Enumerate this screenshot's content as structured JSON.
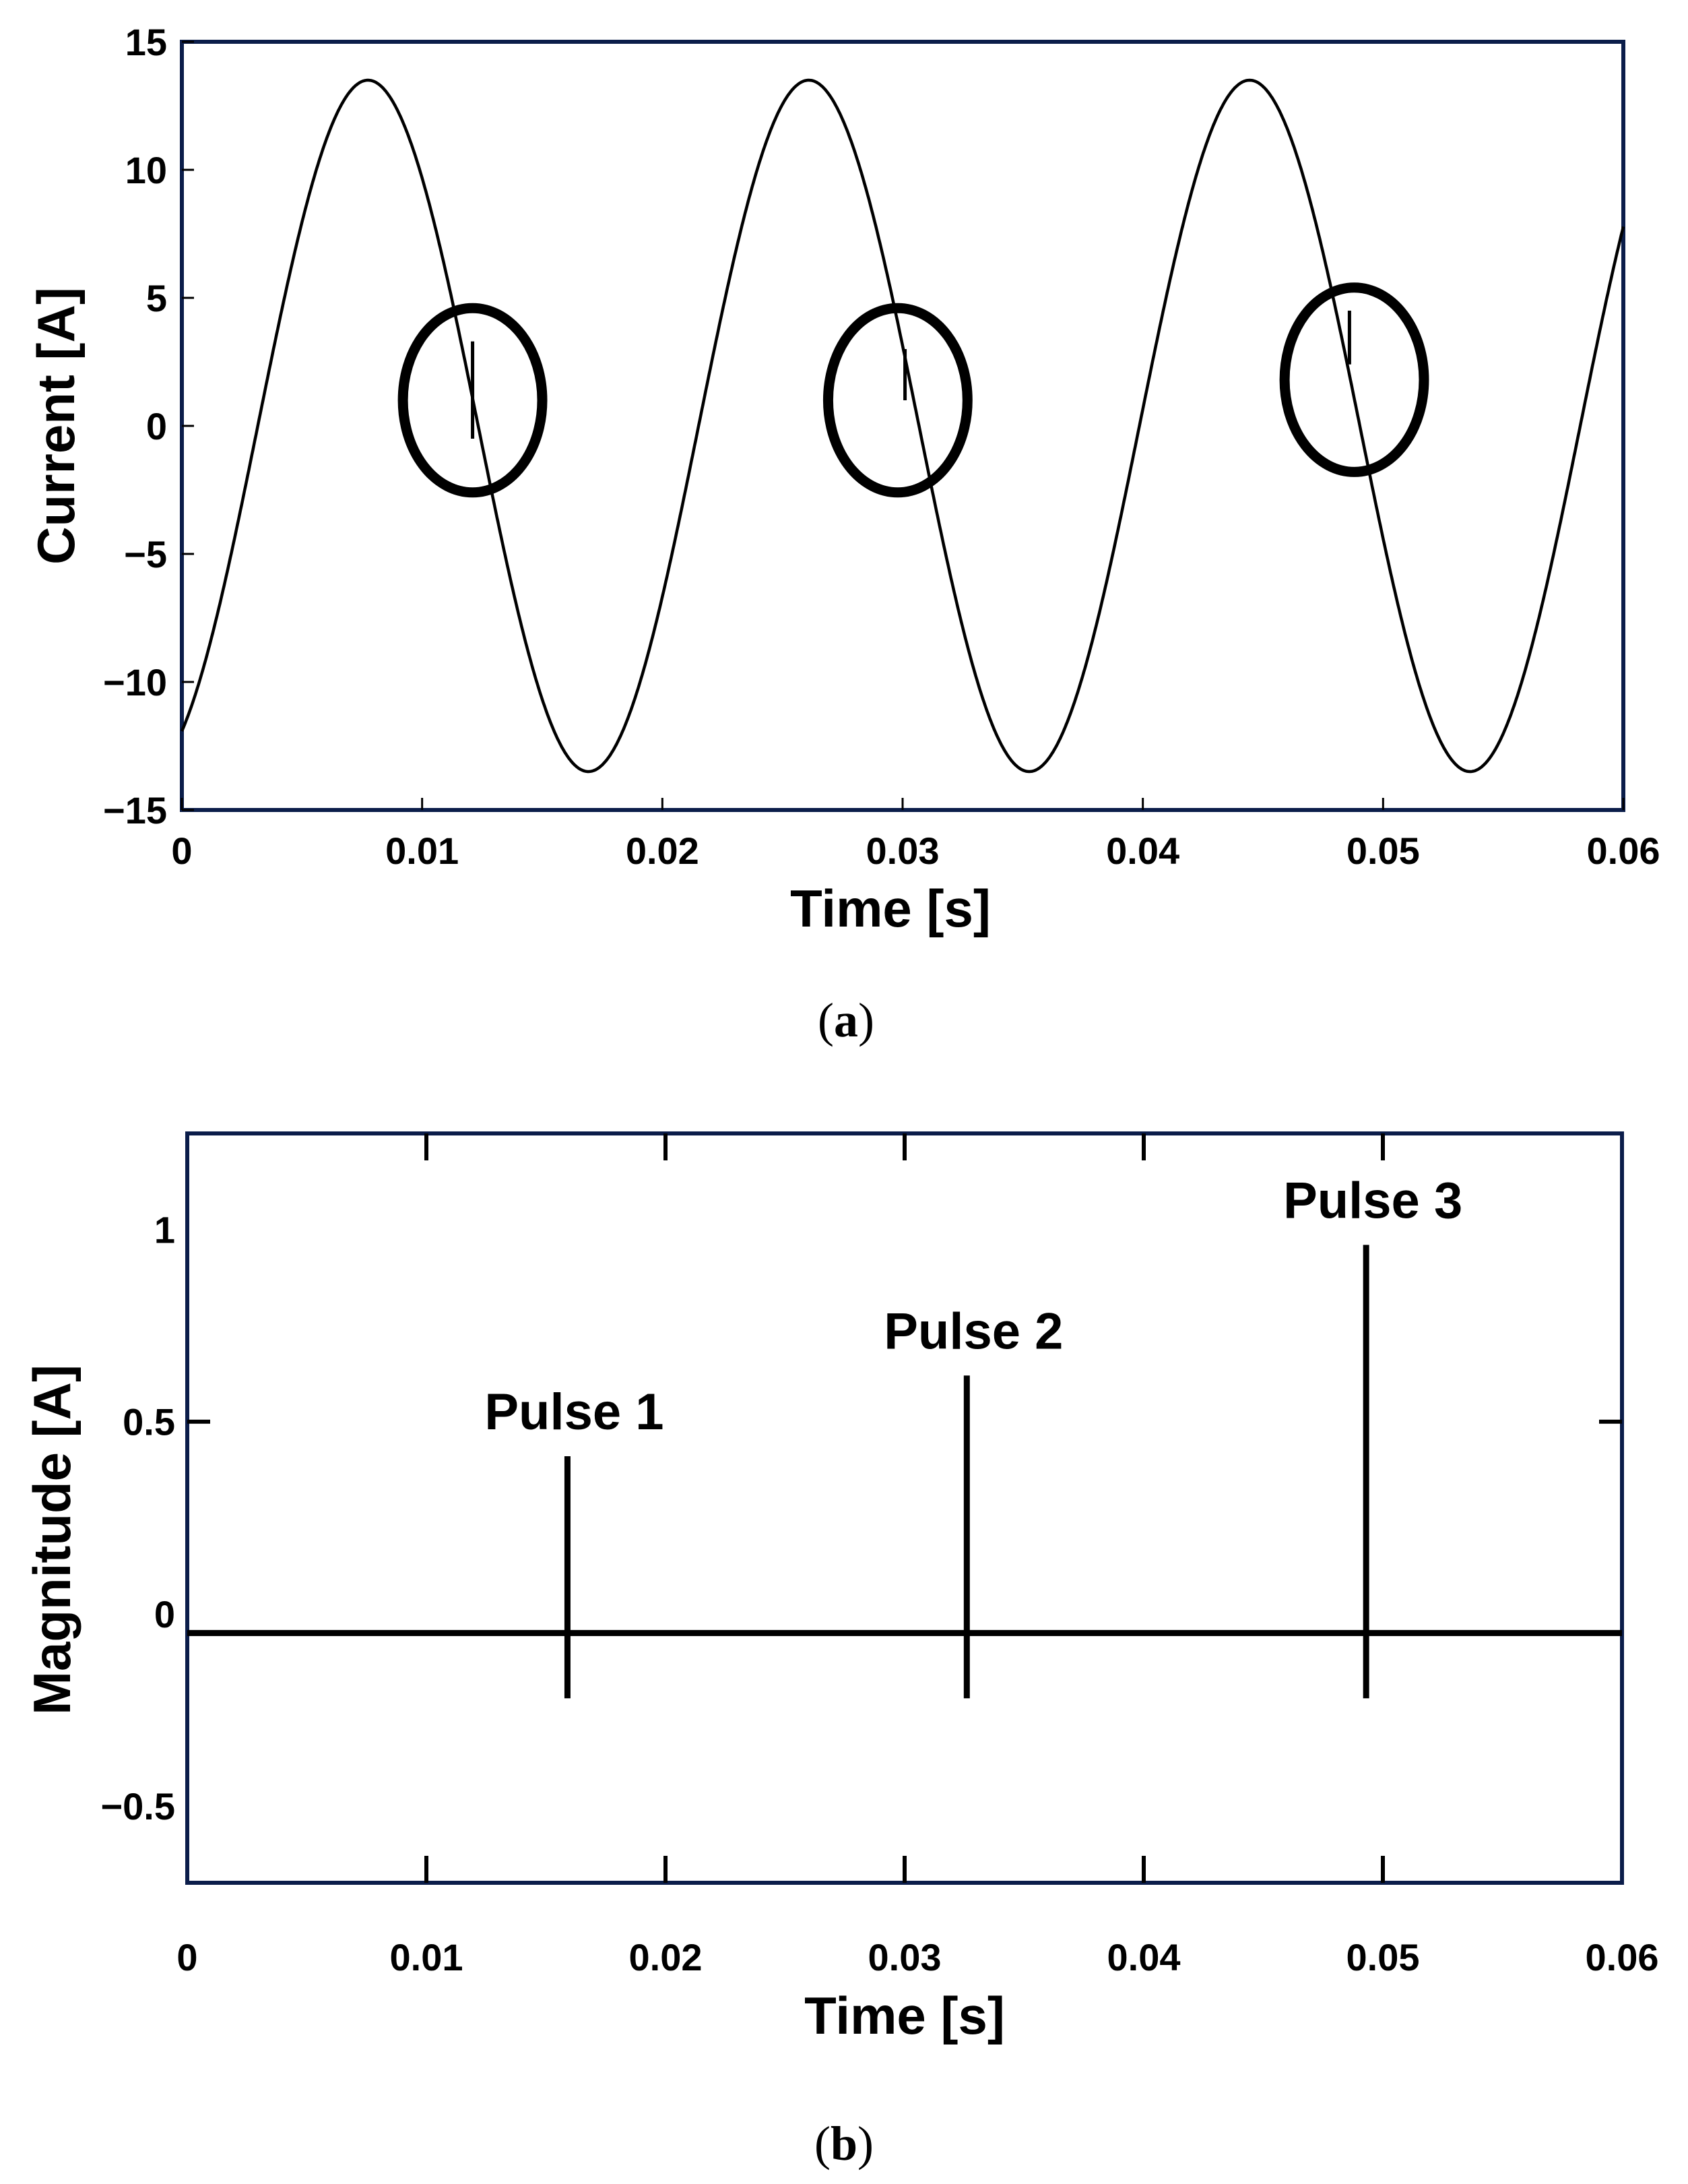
{
  "chart_data": [
    {
      "type": "line",
      "panel_label": "a",
      "title": "",
      "xlabel": "Time [s]",
      "ylabel": "Current [A]",
      "xlim": [
        0,
        0.06
      ],
      "ylim": [
        -15,
        15
      ],
      "xticks": [
        0,
        0.01,
        0.02,
        0.03,
        0.04,
        0.05,
        0.06
      ],
      "xtick_labels": [
        "0",
        "0.01",
        "0.02",
        "0.03",
        "0.04",
        "0.05",
        "0.06"
      ],
      "yticks": [
        15,
        10,
        5,
        0,
        -5,
        -10,
        -15
      ],
      "ytick_labels": [
        "15",
        "10",
        "5",
        "0",
        "−5",
        "−10",
        "−15"
      ],
      "grid": false,
      "series": [
        {
          "amplitude": 13.5,
          "frequency_hz": 54.5,
          "phase_deg": -62,
          "color": "#000000",
          "disturbances": [
            {
              "t": 0.0121,
              "from": -0.5,
              "to": 3.3
            },
            {
              "t": 0.0301,
              "from": 1.0,
              "to": 3.0
            },
            {
              "t": 0.0486,
              "from": 2.4,
              "to": 4.5
            }
          ]
        }
      ],
      "highlight_circles": [
        {
          "x": 0.0121,
          "y": 1.0,
          "rx": 0.0029,
          "ry": 3.6
        },
        {
          "x": 0.0298,
          "y": 1.0,
          "rx": 0.0029,
          "ry": 3.6
        },
        {
          "x": 0.0488,
          "y": 1.8,
          "rx": 0.0029,
          "ry": 3.6
        }
      ],
      "frame_color": "#0b1d4a"
    },
    {
      "type": "line",
      "panel_label": "b",
      "title": "",
      "xlabel": "Time [s]",
      "ylabel": "Magnitude [A]",
      "xlim": [
        0,
        0.06
      ],
      "ylim": [
        -0.7,
        1.25
      ],
      "xticks": [
        0,
        0.01,
        0.02,
        0.03,
        0.04,
        0.05,
        0.06
      ],
      "xtick_labels": [
        "0",
        "0.01",
        "0.02",
        "0.03",
        "0.04",
        "0.05",
        "0.06"
      ],
      "yticks": [
        1,
        0.5,
        0,
        -0.5
      ],
      "ytick_labels": [
        "1",
        "0.5",
        "0",
        "−0.5"
      ],
      "grid": false,
      "baseline": -0.05,
      "series": [
        {
          "name": "",
          "pulses": [
            {
              "x": 0.0159,
              "top": 0.41,
              "bottom": -0.22,
              "label": "Pulse 1"
            },
            {
              "x": 0.0326,
              "top": 0.62,
              "bottom": -0.22,
              "label": "Pulse 2"
            },
            {
              "x": 0.0493,
              "top": 0.96,
              "bottom": -0.22,
              "label": "Pulse 3"
            }
          ]
        }
      ],
      "frame_color": "#0b1d4a"
    }
  ]
}
